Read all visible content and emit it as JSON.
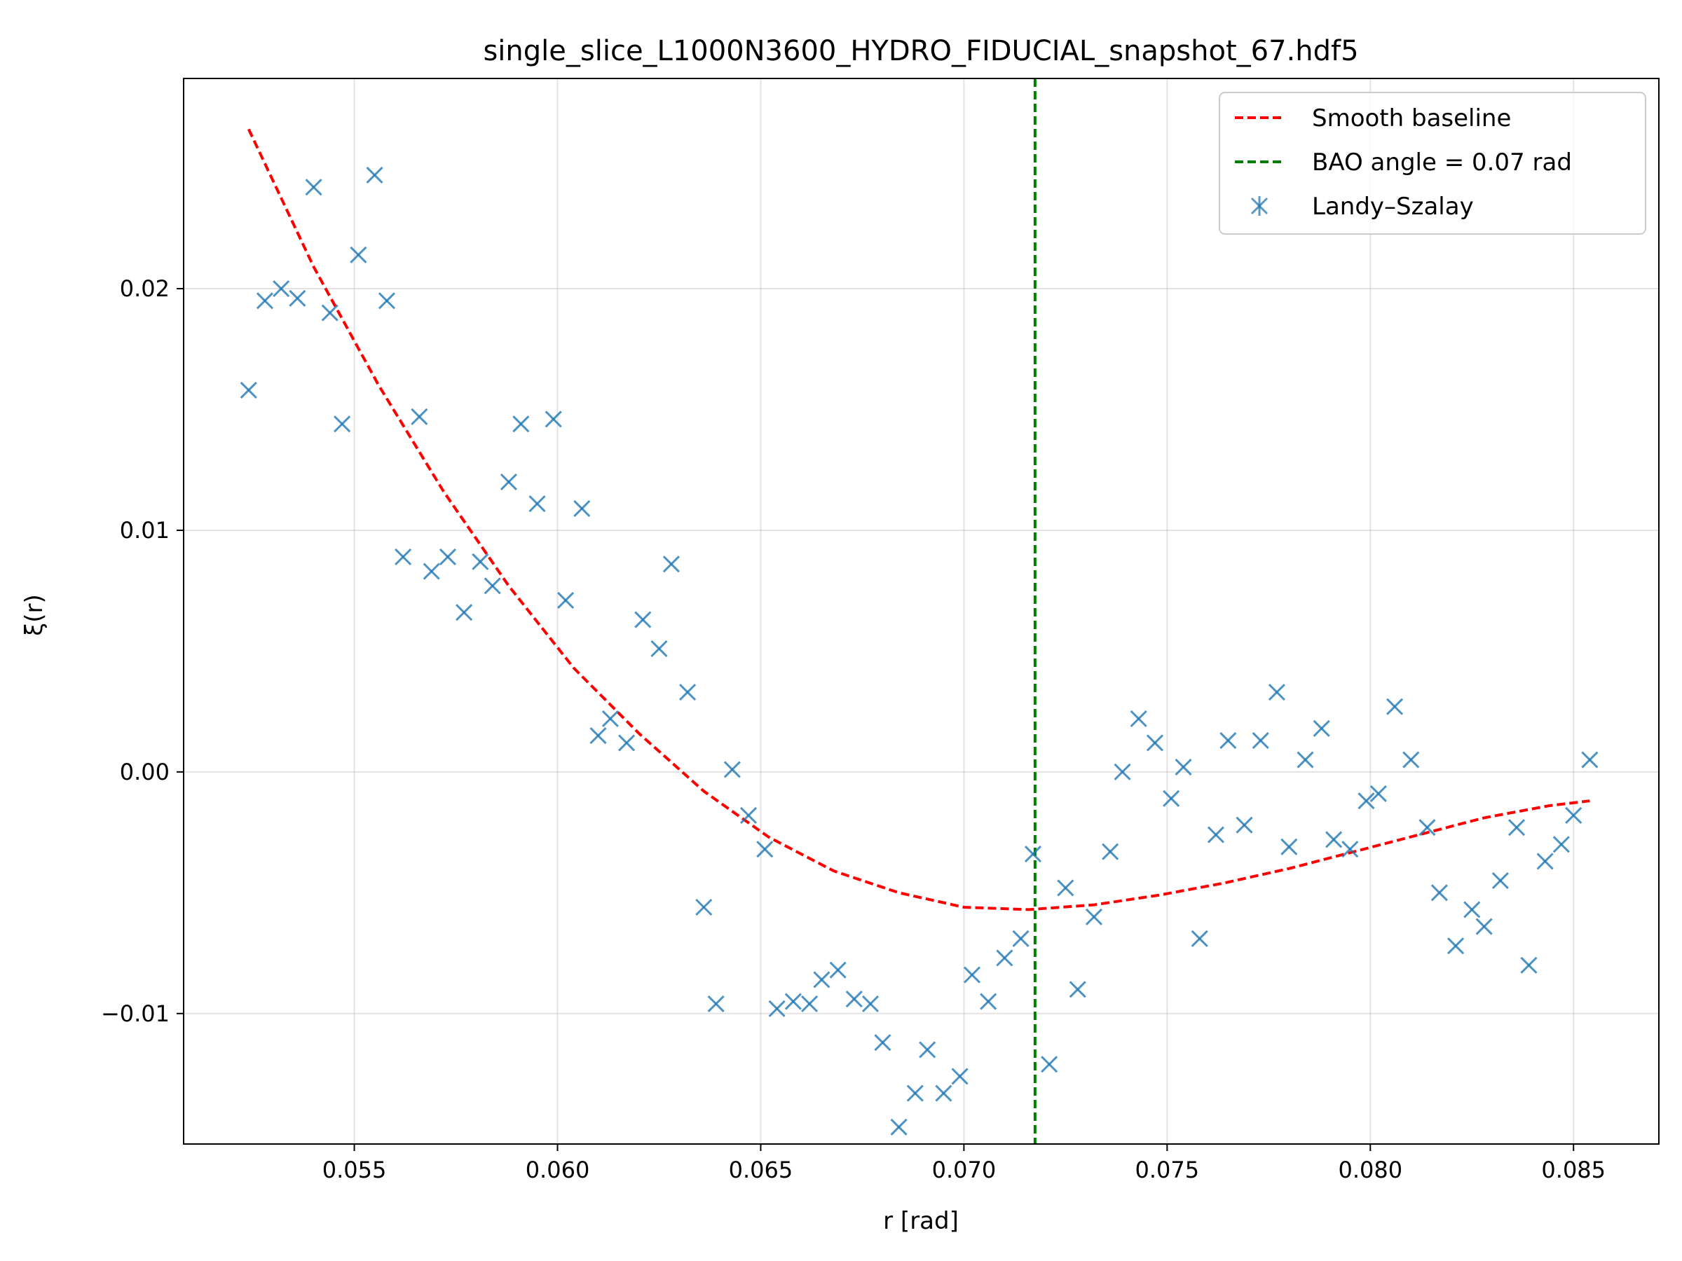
{
  "chart_data": {
    "type": "scatter",
    "title": "single_slice_L1000N3600_HYDRO_FIDUCIAL_snapshot_67.hdf5",
    "xlabel": "r [rad]",
    "ylabel": "ξ(r)",
    "xlim": [
      0.0508,
      0.0871
    ],
    "ylim": [
      -0.0154,
      0.0287
    ],
    "xticks": [
      0.055,
      0.06,
      0.065,
      0.07,
      0.075,
      0.08,
      0.085
    ],
    "xtick_labels": [
      "0.055",
      "0.060",
      "0.065",
      "0.070",
      "0.075",
      "0.080",
      "0.085"
    ],
    "yticks": [
      -0.01,
      0.0,
      0.01,
      0.02
    ],
    "ytick_labels": [
      "−0.01",
      "0.00",
      "0.01",
      "0.02"
    ],
    "grid": true,
    "legend_position": "top-right",
    "legend": [
      "Smooth baseline",
      "BAO angle = 0.07 rad",
      "Landy–Szalay"
    ],
    "colors": {
      "baseline": "#ff0000",
      "bao": "#008000",
      "points": "#1f77b4"
    },
    "bao_angle": 0.07175,
    "baseline": {
      "x": [
        0.0524,
        0.054,
        0.0556,
        0.0572,
        0.0588,
        0.0604,
        0.062,
        0.0636,
        0.0652,
        0.0668,
        0.0684,
        0.07,
        0.0716,
        0.0732,
        0.0748,
        0.0764,
        0.078,
        0.0796,
        0.0812,
        0.0828,
        0.0844,
        0.0854
      ],
      "y": [
        0.0266,
        0.0209,
        0.016,
        0.0116,
        0.0077,
        0.0043,
        0.0016,
        -0.0008,
        -0.0027,
        -0.0041,
        -0.005,
        -0.0056,
        -0.0057,
        -0.0055,
        -0.0051,
        -0.0046,
        -0.004,
        -0.0033,
        -0.0026,
        -0.0019,
        -0.0014,
        -0.0012
      ]
    },
    "series": [
      {
        "name": "Landy–Szalay",
        "x": [
          0.0524,
          0.0528,
          0.0532,
          0.0536,
          0.054,
          0.0544,
          0.0547,
          0.0551,
          0.0555,
          0.0558,
          0.0562,
          0.0566,
          0.0569,
          0.0573,
          0.0577,
          0.0581,
          0.0584,
          0.0588,
          0.0591,
          0.0595,
          0.0599,
          0.0602,
          0.0606,
          0.061,
          0.0613,
          0.0617,
          0.0621,
          0.0625,
          0.0628,
          0.0632,
          0.0636,
          0.0639,
          0.0643,
          0.0647,
          0.0651,
          0.0654,
          0.0658,
          0.0662,
          0.0665,
          0.0669,
          0.0673,
          0.0677,
          0.068,
          0.0684,
          0.0688,
          0.0691,
          0.0695,
          0.0699,
          0.0702,
          0.0706,
          0.071,
          0.0714,
          0.0717,
          0.0721,
          0.0725,
          0.0728,
          0.0732,
          0.0736,
          0.0739,
          0.0743,
          0.0747,
          0.0751,
          0.0754,
          0.0758,
          0.0762,
          0.0765,
          0.0769,
          0.0773,
          0.0777,
          0.078,
          0.0784,
          0.0788,
          0.0791,
          0.0795,
          0.0799,
          0.0802,
          0.0806,
          0.081,
          0.0814,
          0.0817,
          0.0821,
          0.0825,
          0.0828,
          0.0832,
          0.0836,
          0.0839,
          0.0843,
          0.0847,
          0.085,
          0.0854
        ],
        "y": [
          0.0158,
          0.0195,
          0.02,
          0.0196,
          0.0242,
          0.019,
          0.0144,
          0.0214,
          0.0247,
          0.0195,
          0.0089,
          0.0147,
          0.0083,
          0.0089,
          0.0066,
          0.0087,
          0.0077,
          0.012,
          0.0144,
          0.0111,
          0.0146,
          0.0071,
          0.0109,
          0.0015,
          0.0022,
          0.0012,
          0.0063,
          0.0051,
          0.0086,
          0.0033,
          -0.0056,
          -0.0096,
          0.0001,
          -0.0018,
          -0.0032,
          -0.0098,
          -0.0095,
          -0.0096,
          -0.0086,
          -0.0082,
          -0.0094,
          -0.0096,
          -0.0112,
          -0.0147,
          -0.0133,
          -0.0115,
          -0.0133,
          -0.0126,
          -0.0084,
          -0.0095,
          -0.0077,
          -0.0069,
          -0.0034,
          -0.0121,
          -0.0048,
          -0.009,
          -0.006,
          -0.0033,
          0.0,
          0.0022,
          0.0012,
          -0.0011,
          0.0002,
          -0.0069,
          -0.0026,
          0.0013,
          -0.0022,
          0.0013,
          0.0033,
          -0.0031,
          0.0005,
          0.0018,
          -0.0028,
          -0.0032,
          -0.0012,
          -0.0009,
          0.0027,
          0.0005,
          -0.0023,
          -0.005,
          -0.0072,
          -0.0057,
          -0.0064,
          -0.0045,
          -0.0023,
          -0.008,
          -0.0037,
          -0.003,
          -0.0018,
          0.0005
        ]
      }
    ]
  }
}
